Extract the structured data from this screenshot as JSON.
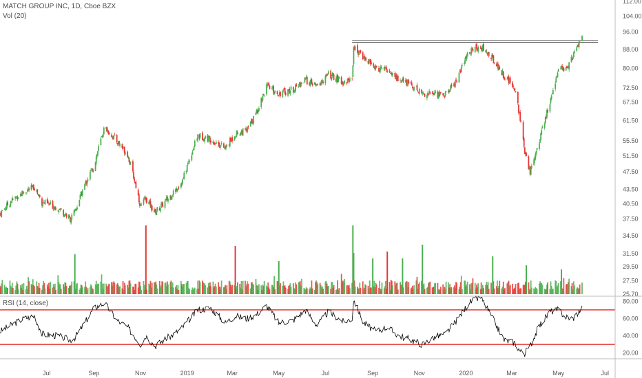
{
  "header": {
    "title": "MATCH GROUP INC, 1D, Cboe BZX",
    "volume_label": "Vol (20)",
    "rsi_label": "RSI (14, close)"
  },
  "colors": {
    "up": "#4caf50",
    "down": "#e53935",
    "resistance": "#555555",
    "rsi_line": "#000000",
    "rsi_band": "#e53935",
    "axis_text": "#555555",
    "divider": "#bbbbbb"
  },
  "chart_data": [
    {
      "type": "line",
      "name": "price",
      "title": "MATCH GROUP INC, 1D, Cboe BZX",
      "y_scale": "log",
      "y_ticks": [
        "112.00",
        "104.00",
        "96.00",
        "88.00",
        "80.00",
        "72.50",
        "67.50",
        "61.50",
        "55.50",
        "51.50",
        "47.50",
        "43.50",
        "40.50",
        "37.50",
        "34.50",
        "31.50",
        "29.50",
        "27.50",
        "25.70"
      ],
      "x_ticks": [
        "Jul",
        "Sep",
        "Nov",
        "2019",
        "Mar",
        "May",
        "Jul",
        "Sep",
        "Nov",
        "2020",
        "Mar",
        "May",
        "Jul"
      ],
      "x": [
        "2018-05-01",
        "2018-05-15",
        "2018-06-01",
        "2018-06-15",
        "2018-06-25",
        "2018-07-15",
        "2018-08-01",
        "2018-08-07",
        "2018-08-20",
        "2018-09-01",
        "2018-09-15",
        "2018-10-01",
        "2018-10-15",
        "2018-11-01",
        "2018-11-08",
        "2018-11-20",
        "2018-12-01",
        "2018-12-15",
        "2018-12-26",
        "2019-01-15",
        "2019-02-01",
        "2019-02-20",
        "2019-03-05",
        "2019-03-20",
        "2019-04-01",
        "2019-04-15",
        "2019-05-01",
        "2019-05-20",
        "2019-06-05",
        "2019-06-20",
        "2019-07-05",
        "2019-07-25",
        "2019-08-05",
        "2019-08-07",
        "2019-08-20",
        "2019-09-05",
        "2019-09-20",
        "2019-10-05",
        "2019-10-20",
        "2019-11-05",
        "2019-11-20",
        "2019-12-05",
        "2019-12-20",
        "2020-01-05",
        "2020-01-20",
        "2020-02-05",
        "2020-02-20",
        "2020-03-05",
        "2020-03-12",
        "2020-03-18",
        "2020-03-25",
        "2020-04-05",
        "2020-04-20",
        "2020-05-01",
        "2020-05-10",
        "2020-05-20",
        "2020-06-01"
      ],
      "series": [
        {
          "values": [
            38.5,
            41.0,
            43.0,
            44.0,
            40.8,
            39.8,
            37.5,
            38.8,
            44.5,
            49.0,
            59.5,
            55.5,
            52.0,
            40.0,
            41.5,
            38.8,
            40.5,
            43.0,
            45.5,
            57.0,
            56.0,
            53.5,
            57.5,
            58.5,
            63.5,
            73.0,
            70.5,
            72.0,
            75.5,
            73.0,
            77.5,
            74.5,
            76.0,
            89.0,
            84.5,
            80.0,
            79.5,
            75.5,
            74.0,
            70.5,
            70.5,
            70.0,
            75.5,
            87.0,
            89.5,
            84.0,
            77.0,
            72.5,
            62.0,
            52.0,
            47.5,
            55.0,
            67.0,
            80.0,
            79.0,
            85.0,
            94.0
          ]
        }
      ],
      "ylim": [
        25.7,
        112.0
      ],
      "resistance": [
        91.2,
        92.0
      ]
    },
    {
      "type": "bar",
      "name": "volume",
      "title": "Vol (20)",
      "spikes": [
        {
          "x": "2018-08-07",
          "relative_height": 0.58
        },
        {
          "x": "2018-11-08",
          "relative_height": 1.0
        },
        {
          "x": "2019-03-05",
          "relative_height": 0.7
        },
        {
          "x": "2019-05-01",
          "relative_height": 0.48
        },
        {
          "x": "2019-08-06",
          "relative_height": 1.0
        },
        {
          "x": "2019-08-07",
          "relative_height": 0.6
        },
        {
          "x": "2019-09-01",
          "relative_height": 0.52
        },
        {
          "x": "2019-09-20",
          "relative_height": 0.62
        },
        {
          "x": "2019-10-10",
          "relative_height": 0.52
        },
        {
          "x": "2019-11-05",
          "relative_height": 0.72
        },
        {
          "x": "2020-02-05",
          "relative_height": 0.55
        },
        {
          "x": "2020-03-20",
          "relative_height": 0.42
        },
        {
          "x": "2020-05-05",
          "relative_height": 0.36
        }
      ]
    },
    {
      "type": "line",
      "name": "rsi",
      "title": "RSI (14, close)",
      "y_ticks": [
        "80.00",
        "60.00",
        "40.00",
        "20.00"
      ],
      "ylim": [
        15,
        85
      ],
      "bands": [
        70,
        30
      ],
      "x": [
        "2018-05-01",
        "2018-05-15",
        "2018-06-01",
        "2018-06-15",
        "2018-06-25",
        "2018-07-15",
        "2018-08-01",
        "2018-08-07",
        "2018-08-20",
        "2018-09-01",
        "2018-09-15",
        "2018-10-01",
        "2018-10-15",
        "2018-11-01",
        "2018-11-08",
        "2018-11-20",
        "2018-12-01",
        "2018-12-15",
        "2018-12-26",
        "2019-01-15",
        "2019-02-01",
        "2019-02-20",
        "2019-03-05",
        "2019-03-20",
        "2019-04-01",
        "2019-04-15",
        "2019-05-01",
        "2019-05-20",
        "2019-06-05",
        "2019-06-20",
        "2019-07-05",
        "2019-07-25",
        "2019-08-05",
        "2019-08-07",
        "2019-08-20",
        "2019-09-05",
        "2019-09-20",
        "2019-10-05",
        "2019-10-20",
        "2019-11-05",
        "2019-11-20",
        "2019-12-05",
        "2019-12-20",
        "2020-01-05",
        "2020-01-20",
        "2020-02-05",
        "2020-02-20",
        "2020-03-05",
        "2020-03-12",
        "2020-03-18",
        "2020-03-25",
        "2020-04-05",
        "2020-04-20",
        "2020-05-01",
        "2020-05-10",
        "2020-05-20",
        "2020-06-01"
      ],
      "series": [
        {
          "values": [
            45,
            52,
            60,
            63,
            42,
            40,
            35,
            38,
            55,
            72,
            78,
            58,
            50,
            30,
            40,
            28,
            35,
            42,
            50,
            70,
            72,
            55,
            63,
            60,
            64,
            75,
            55,
            58,
            70,
            52,
            68,
            56,
            60,
            82,
            55,
            45,
            50,
            40,
            36,
            30,
            38,
            42,
            58,
            78,
            85,
            60,
            35,
            32,
            22,
            20,
            28,
            50,
            68,
            70,
            62,
            60,
            72
          ]
        }
      ]
    }
  ]
}
